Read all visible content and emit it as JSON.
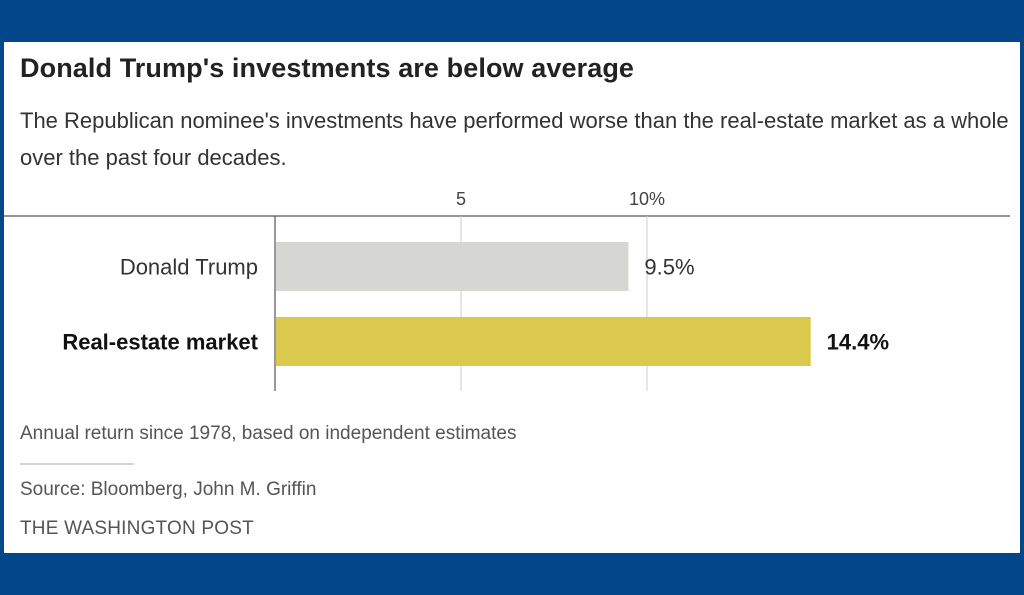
{
  "header": {
    "title": "Donald Trump's investments are below average",
    "subtitle": "The Republican nominee's investments have performed worse than the real-estate market as a whole over the past four decades."
  },
  "chart_data": {
    "type": "bar",
    "orientation": "horizontal",
    "categories": [
      "Donald Trump",
      "Real-estate market"
    ],
    "values": [
      9.5,
      14.4
    ],
    "value_labels": [
      "9.5%",
      "14.4%"
    ],
    "bold_category": [
      "false",
      "true"
    ],
    "colors": [
      "#d6d6d2",
      "#dbc94d"
    ],
    "xlim": [
      0,
      20
    ],
    "xticks": [
      5,
      10
    ],
    "xtick_labels": [
      "5",
      "10%"
    ],
    "gridlines": true,
    "title": "Donald Trump's investments are below average",
    "xlabel": "",
    "ylabel": ""
  },
  "footer": {
    "caption": "Annual return since 1978, based on independent estimates",
    "source": "Source: Bloomberg, John M. Griffin",
    "publisher": "THE WASHINGTON POST"
  },
  "colors": {
    "background": "#04468a",
    "card": "#ffffff",
    "gridline": "#cccccc",
    "axis": "#555555"
  }
}
